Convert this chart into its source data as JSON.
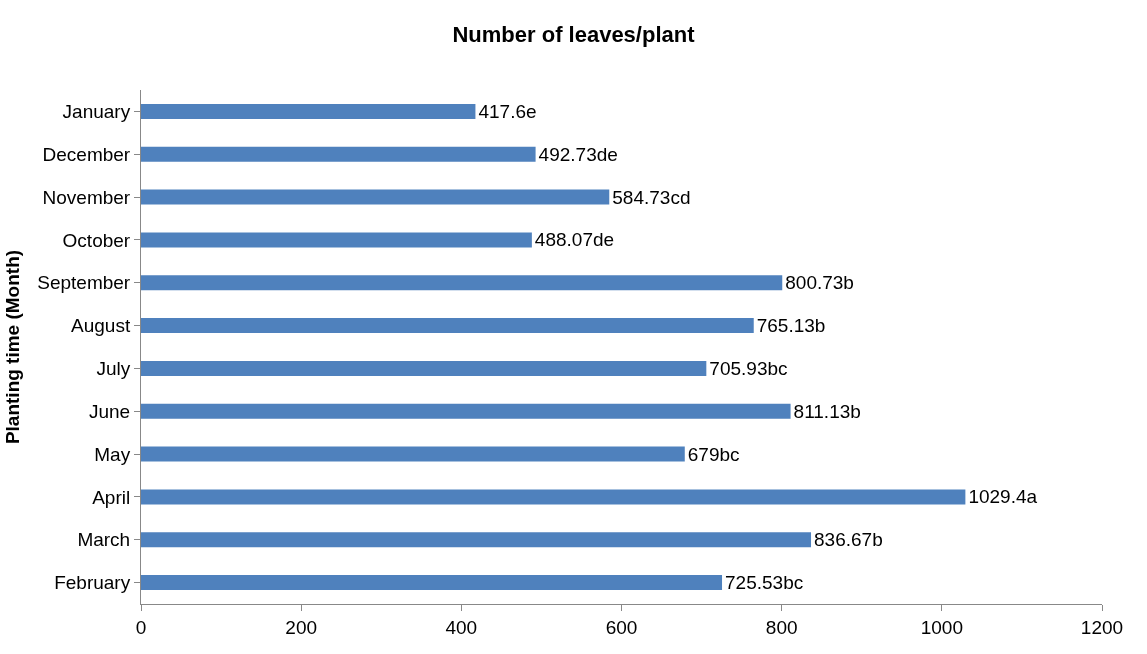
{
  "chart_data": {
    "type": "bar",
    "orientation": "horizontal",
    "title": "Number of leaves/plant",
    "ylabel": "Planting time (Month)",
    "categories": [
      "January",
      "December",
      "November",
      "October",
      "September",
      "August",
      "July",
      "June",
      "May",
      "April",
      "March",
      "February"
    ],
    "values": [
      417.6,
      492.73,
      584.73,
      488.07,
      800.73,
      765.13,
      705.93,
      811.13,
      679,
      1029.4,
      836.67,
      725.53
    ],
    "value_labels": [
      "417.6e",
      "492.73de",
      "584.73cd",
      "488.07de",
      "800.73b",
      "765.13b",
      "705.93bc",
      "811.13b",
      "679bc",
      "1029.4a",
      "836.67b",
      "725.53bc"
    ],
    "color": "#4f81bd",
    "xlim": [
      0,
      1200
    ],
    "xticks": [
      0,
      200,
      400,
      600,
      800,
      1000,
      1200
    ],
    "grid": false
  }
}
